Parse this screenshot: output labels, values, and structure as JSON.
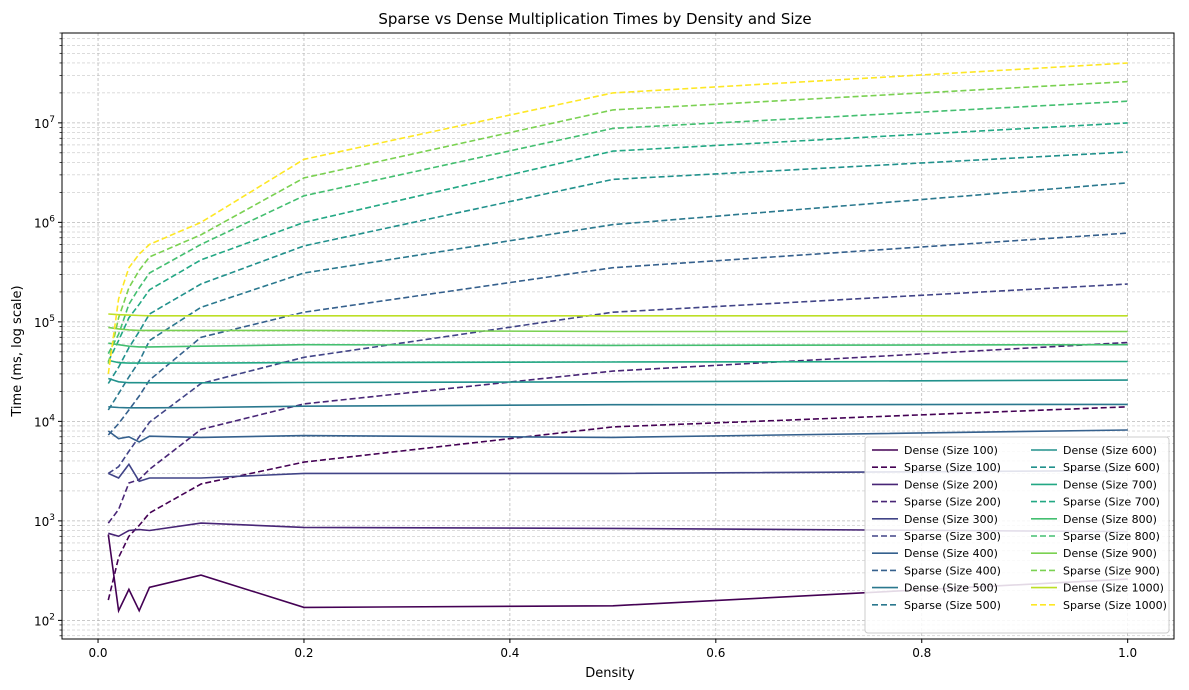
{
  "chart_data": {
    "type": "line",
    "title": "Sparse vs Dense Multiplication Times by Density and Size",
    "xlabel": "Density",
    "ylabel": "Time (ms, log scale)",
    "xlim": [
      -0.035,
      1.045
    ],
    "ylim": [
      65,
      80000000
    ],
    "yscale": "log",
    "grid": true,
    "legend_location": "lower-right",
    "legend_columns": 2,
    "x_ticks": [
      0.0,
      0.2,
      0.4,
      0.6,
      0.8,
      1.0
    ],
    "x_tick_labels": [
      "0.0",
      "0.2",
      "0.4",
      "0.6",
      "0.8",
      "1.0"
    ],
    "y_ticks": [
      100,
      1000,
      10000,
      100000,
      1000000,
      10000000
    ],
    "y_tick_bases": [
      "10",
      "10",
      "10",
      "10",
      "10",
      "10"
    ],
    "y_tick_exponents": [
      "2",
      "3",
      "4",
      "5",
      "6",
      "7"
    ],
    "x": [
      0.01,
      0.02,
      0.03,
      0.04,
      0.05,
      0.1,
      0.2,
      0.5,
      1.0
    ],
    "series": [
      {
        "name": "Dense (Size 100)",
        "style": "solid",
        "color": "#440154",
        "values": [
          730,
          125,
          205,
          125,
          215,
          285,
          135,
          140,
          260
        ]
      },
      {
        "name": "Sparse (Size 100)",
        "style": "dashed",
        "color": "#440154",
        "values": [
          160,
          430,
          700,
          900,
          1200,
          2350,
          3900,
          8800,
          14000
        ]
      },
      {
        "name": "Dense (Size 200)",
        "style": "solid",
        "color": "#482576",
        "values": [
          750,
          700,
          800,
          820,
          800,
          950,
          860,
          840,
          780
        ]
      },
      {
        "name": "Sparse (Size 200)",
        "style": "dashed",
        "color": "#482576",
        "values": [
          950,
          1300,
          2400,
          2600,
          3300,
          8300,
          15000,
          32000,
          62000
        ]
      },
      {
        "name": "Dense (Size 300)",
        "style": "solid",
        "color": "#414487",
        "values": [
          3000,
          2700,
          3700,
          2500,
          2700,
          2700,
          3000,
          3000,
          3200
        ]
      },
      {
        "name": "Sparse (Size 300)",
        "style": "dashed",
        "color": "#414487",
        "values": [
          3000,
          3500,
          5000,
          7000,
          9800,
          24000,
          44000,
          125000,
          240000
        ]
      },
      {
        "name": "Dense (Size 400)",
        "style": "solid",
        "color": "#35608d",
        "values": [
          8000,
          6700,
          7000,
          6200,
          7100,
          6900,
          7200,
          6900,
          8200
        ]
      },
      {
        "name": "Sparse (Size 400)",
        "style": "dashed",
        "color": "#35608d",
        "values": [
          7300,
          9500,
          13000,
          18000,
          26000,
          70000,
          125000,
          350000,
          780000
        ]
      },
      {
        "name": "Dense (Size 500)",
        "style": "solid",
        "color": "#2a788e",
        "values": [
          14000,
          13800,
          13700,
          13700,
          13700,
          13800,
          14200,
          14700,
          14800
        ]
      },
      {
        "name": "Sparse (Size 500)",
        "style": "dashed",
        "color": "#2a788e",
        "values": [
          13000,
          19000,
          28000,
          40000,
          65000,
          140000,
          310000,
          950000,
          2500000
        ]
      },
      {
        "name": "Dense (Size 600)",
        "style": "solid",
        "color": "#21918c",
        "values": [
          27000,
          25000,
          24500,
          24500,
          24400,
          24400,
          24600,
          25000,
          26000
        ]
      },
      {
        "name": "Sparse (Size 600)",
        "style": "dashed",
        "color": "#21918c",
        "values": [
          24000,
          35000,
          55000,
          80000,
          120000,
          240000,
          580000,
          2700000,
          5100000
        ]
      },
      {
        "name": "Dense (Size 700)",
        "style": "solid",
        "color": "#22a884",
        "values": [
          41000,
          39000,
          38500,
          38500,
          38500,
          38500,
          39000,
          39500,
          40000
        ]
      },
      {
        "name": "Sparse (Size 700)",
        "style": "dashed",
        "color": "#22a884",
        "values": [
          40000,
          65000,
          110000,
          150000,
          210000,
          420000,
          1000000,
          5200000,
          10000000
        ]
      },
      {
        "name": "Dense (Size 800)",
        "style": "solid",
        "color": "#44bf70",
        "values": [
          61000,
          59000,
          57000,
          56000,
          56000,
          57000,
          59000,
          58000,
          59000
        ]
      },
      {
        "name": "Sparse (Size 800)",
        "style": "dashed",
        "color": "#44bf70",
        "values": [
          48000,
          75000,
          150000,
          220000,
          310000,
          600000,
          1850000,
          8800000,
          16500000
        ]
      },
      {
        "name": "Dense (Size 900)",
        "style": "solid",
        "color": "#7ad151",
        "values": [
          88000,
          85000,
          83000,
          82000,
          82000,
          82000,
          82000,
          80000,
          80000
        ]
      },
      {
        "name": "Sparse (Size 900)",
        "style": "dashed",
        "color": "#7ad151",
        "values": [
          38000,
          110000,
          220000,
          330000,
          450000,
          750000,
          2800000,
          13500000,
          26000000
        ]
      },
      {
        "name": "Dense (Size 1000)",
        "style": "solid",
        "color": "#bddf26",
        "values": [
          120000,
          118000,
          117000,
          116000,
          115000,
          115000,
          115000,
          115000,
          115000
        ]
      },
      {
        "name": "Sparse (Size 1000)",
        "style": "dashed",
        "color": "#fde725",
        "values": [
          30000,
          170000,
          350000,
          480000,
          600000,
          1000000,
          4300000,
          20000000,
          40000000
        ]
      }
    ]
  }
}
